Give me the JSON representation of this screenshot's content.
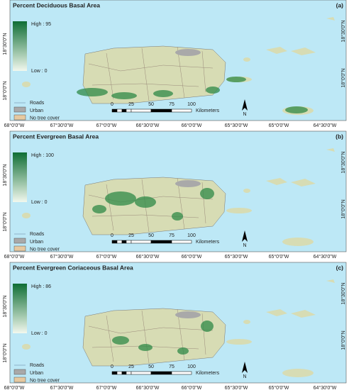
{
  "lon_labels": [
    "68°0'0\"W",
    "67°30'0\"W",
    "67°0'0\"W",
    "66°30'0\"W",
    "66°0'0\"W",
    "65°30'0\"W",
    "65°0'0\"W",
    "64°30'0\"W"
  ],
  "lat_labels": [
    "18°30'0\"N",
    "18°0'0\"N"
  ],
  "panels": [
    {
      "title": "Percent Deciduous Basal Area",
      "letter": "(a)",
      "high": "High : 95",
      "low": "Low : 0",
      "legend": [
        "Roads",
        "Urban",
        "No tree cover"
      ],
      "scale": [
        "0",
        "25",
        "50",
        "75",
        "100"
      ],
      "scale_unit": "Kilometers",
      "north": "N"
    },
    {
      "title": "Percent Evergreen Basal Area",
      "letter": "(b)",
      "high": "High : 100",
      "low": "Low : 0",
      "legend": [
        "Roads",
        "Urban",
        "No tree cover"
      ],
      "scale": [
        "0",
        "25",
        "50",
        "75",
        "100"
      ],
      "scale_unit": "Kilometers",
      "north": "N"
    },
    {
      "title": "Percent Evergreen Coriaceous Basal Area",
      "letter": "(c)",
      "high": "High : 86",
      "low": "Low : 0",
      "legend": [
        "Roads",
        "Urban",
        "No tree cover"
      ],
      "scale": [
        "0",
        "25",
        "50",
        "75",
        "100"
      ],
      "scale_unit": "Kilometers",
      "north": "N"
    }
  ]
}
